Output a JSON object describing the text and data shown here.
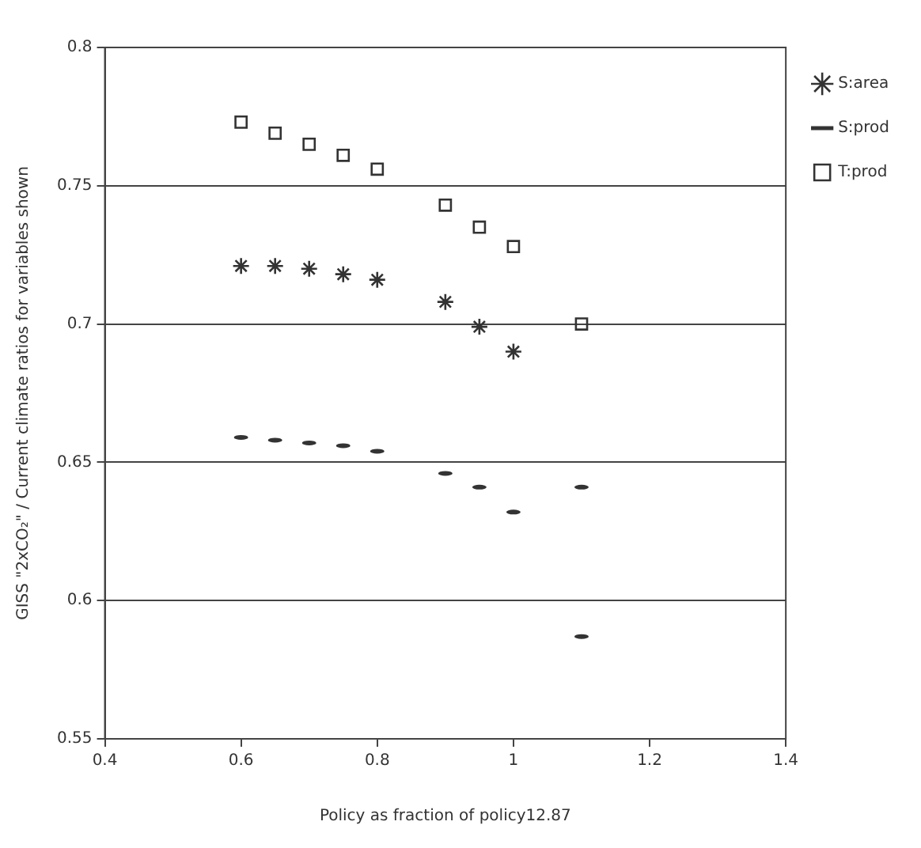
{
  "chart_data": {
    "type": "scatter",
    "xlabel": "Policy as fraction of policy12.87",
    "ylabel": "GISS \"2xCO₂\" / Current climate ratios for variables shown",
    "xlim": [
      0.4,
      1.4
    ],
    "xticks": [
      0.4,
      0.6,
      0.8,
      1,
      1.2,
      1.4
    ],
    "ylim": [
      0.55,
      0.8
    ],
    "yticks": [
      0.55,
      0.6,
      0.65,
      0.7,
      0.75,
      0.8
    ],
    "grid": "y",
    "legend": "right",
    "series": [
      {
        "name": "S:area",
        "color": "#333333",
        "marker": "cross",
        "x": [
          0.6,
          0.65,
          0.7,
          0.75,
          0.8,
          0.9,
          0.95,
          1
        ],
        "values": [
          0.721,
          0.721,
          0.72,
          0.718,
          0.716,
          0.708,
          0.699,
          0.69
        ]
      },
      {
        "name": "S:prod",
        "color": "#333333",
        "x": [
          0.6,
          0.65,
          0.7,
          0.75,
          0.8,
          0.9,
          0.95,
          1,
          1.1,
          1.1
        ],
        "values": [
          0.659,
          0.658,
          0.657,
          0.656,
          0.654,
          0.646,
          0.641,
          0.632,
          0.641,
          0.587
        ]
      },
      {
        "name": "T:prod",
        "color": "#333333",
        "marker": "square",
        "x": [
          0.6,
          0.65,
          0.7,
          0.75,
          0.8,
          0.9,
          0.95,
          1,
          1.1
        ],
        "values": [
          0.773,
          0.769,
          0.765,
          0.761,
          0.756,
          0.743,
          0.735,
          0.728,
          0.7
        ]
      }
    ]
  }
}
